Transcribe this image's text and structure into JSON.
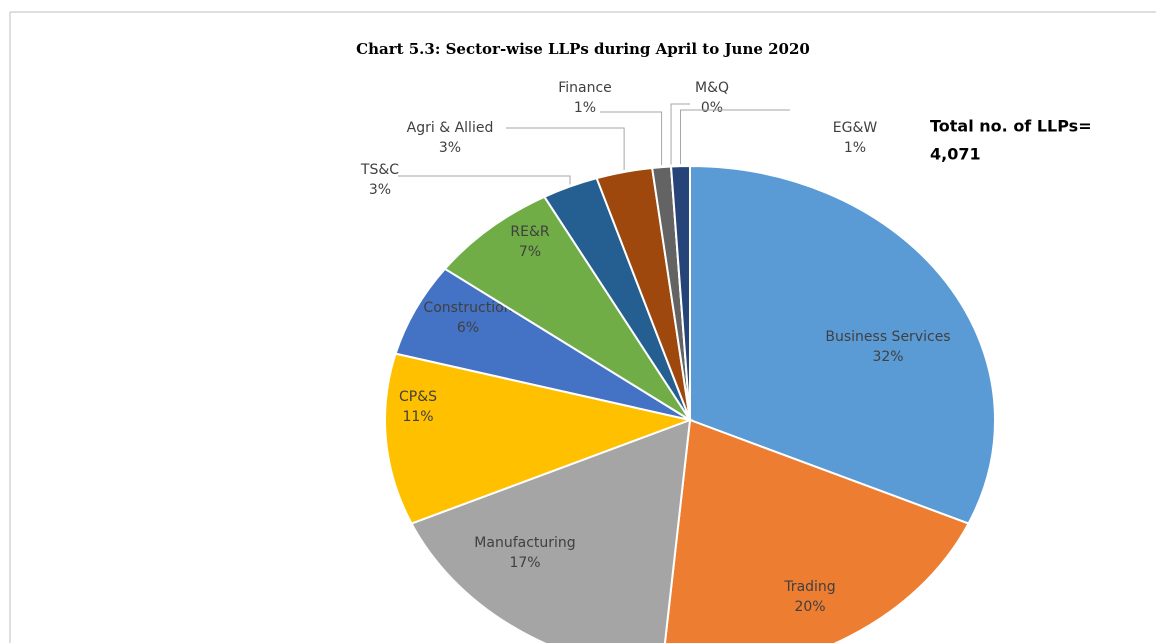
{
  "chart_data": {
    "type": "pie",
    "title": "Chart 5.3: Sector-wise LLPs during April to June 2020",
    "annotation": [
      "Total no. of LLPs=",
      "4,071"
    ],
    "categories": [
      "Business Services",
      "Trading",
      "Manufacturing",
      "CP&S",
      "Construction",
      "RE&R",
      "TS&C",
      "Agri & Allied",
      "Finance",
      "M&Q",
      "EG&W"
    ],
    "values": [
      32,
      20,
      17,
      11,
      6,
      7,
      3,
      3,
      1,
      0,
      1
    ],
    "value_labels": [
      "32%",
      "20%",
      "17%",
      "11%",
      "6%",
      "7%",
      "3%",
      "3%",
      "1%",
      "0%",
      "1%"
    ],
    "colors": [
      "#5b9bd5",
      "#ed7d31",
      "#a5a5a5",
      "#ffc000",
      "#4472c4",
      "#70ad47",
      "#255e91",
      "#9e480e",
      "#636363",
      "#997300",
      "#264478"
    ]
  }
}
